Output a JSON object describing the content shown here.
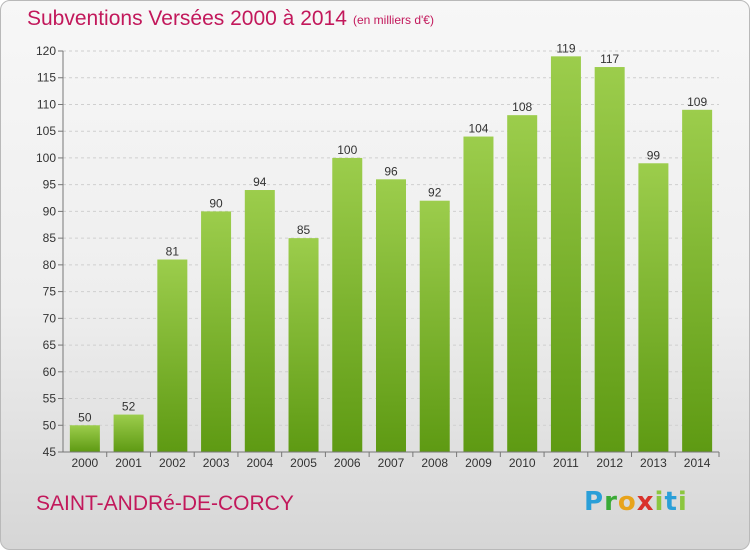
{
  "title": "Subventions Versées 2000 à 2014",
  "subtitle": "(en milliers d'€)",
  "place": "SAINT-ANDRé-DE-CORCY",
  "logo": {
    "text": "Proxiti",
    "letters": [
      "P",
      "r",
      "o",
      "x",
      "i",
      "t",
      "i"
    ]
  },
  "colors": {
    "title": "#c2185b",
    "bar_light": "#9ccd4c",
    "bar_dark": "#5e9a13"
  },
  "chart_data": {
    "type": "bar",
    "categories": [
      "2000",
      "2001",
      "2002",
      "2003",
      "2004",
      "2005",
      "2006",
      "2007",
      "2008",
      "2009",
      "2010",
      "2011",
      "2012",
      "2013",
      "2014"
    ],
    "values": [
      50,
      52,
      81,
      90,
      94,
      85,
      100,
      96,
      92,
      104,
      108,
      119,
      117,
      99,
      109
    ],
    "ylim": [
      45,
      120
    ],
    "yticks": [
      45,
      50,
      55,
      60,
      65,
      70,
      75,
      80,
      85,
      90,
      95,
      100,
      105,
      110,
      115,
      120
    ],
    "grid": "horizontal dashed",
    "legend": "none"
  }
}
